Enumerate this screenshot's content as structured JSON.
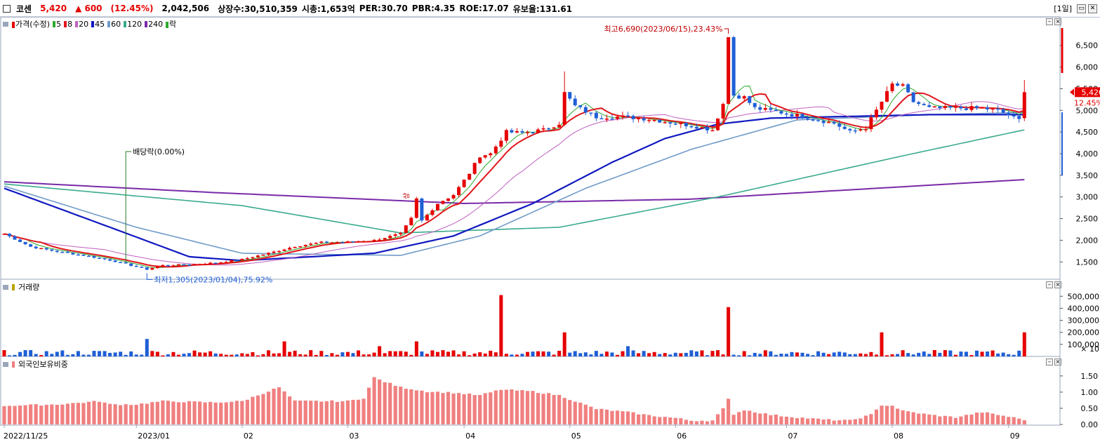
{
  "header": {
    "name": "코센",
    "price": "5,420",
    "change": "▲ 600",
    "change_pct": "(12.45%)",
    "volume": "2,042,506",
    "listed": "상장수:30,510,359",
    "mcap": "시총:1,653억",
    "per": "PER:30.70",
    "pbr": "PBR:4.35",
    "roe": "ROE:17.07",
    "reserve": "유보율:131.61",
    "period": "[1일]"
  },
  "colors": {
    "up": "#e60000",
    "down": "#1f5fd6",
    "ma5": "#2eaa2e",
    "ma8": "#e0161b",
    "ma20": "#c060c0",
    "ma45": "#1018c0",
    "ma60": "#6f9bc8",
    "ma120": "#3aaa8e",
    "ma240": "#7a2aa8",
    "foreign": "#f08080"
  },
  "legend_price": [
    {
      "label": "가격(수정)",
      "color": "#e60000"
    },
    {
      "label": "5",
      "color": "#2eaa2e"
    },
    {
      "label": "8",
      "color": "#e0161b"
    },
    {
      "label": "20",
      "color": "#c060c0"
    },
    {
      "label": "45",
      "color": "#1018c0"
    },
    {
      "label": "60",
      "color": "#6f9bc8"
    },
    {
      "label": "120",
      "color": "#3aaa8e"
    },
    {
      "label": "240",
      "color": "#7a2aa8"
    },
    {
      "label": "락",
      "color": "#2eaa2e"
    }
  ],
  "legend_volume": {
    "label": "거래량",
    "color": "#b8a400"
  },
  "legend_foreign": {
    "label": "외국인보유비중",
    "color": "#f08080"
  },
  "chart_data": [
    {
      "type": "candlestick",
      "panel": "price",
      "title": "",
      "y_ticks": [
        1500,
        2000,
        2500,
        3000,
        3500,
        4000,
        4500,
        5000,
        5500,
        6000,
        6500
      ],
      "y_tick_labels": [
        "1,500",
        "2,000",
        "2,500",
        "3,000",
        "3,500",
        "4,000",
        "4,500",
        "5,000",
        "5,500",
        "6,000",
        "6,500"
      ],
      "ylim": [
        1100,
        6900
      ],
      "x_tick_labels": [
        "2022/11/25",
        "2023/01",
        "02",
        "03",
        "04",
        "05",
        "06",
        "07",
        "08",
        "09"
      ],
      "x_tick_index": [
        0,
        25,
        45,
        65,
        87,
        107,
        127,
        148,
        168,
        190
      ],
      "series_keypoints": [
        [
          0,
          2150
        ],
        [
          5,
          1850
        ],
        [
          10,
          1740
        ],
        [
          15,
          1650
        ],
        [
          20,
          1540
        ],
        [
          25,
          1390
        ],
        [
          27,
          1330
        ],
        [
          30,
          1420
        ],
        [
          35,
          1440
        ],
        [
          40,
          1480
        ],
        [
          45,
          1560
        ],
        [
          50,
          1700
        ],
        [
          55,
          1860
        ],
        [
          60,
          1950
        ],
        [
          65,
          1960
        ],
        [
          70,
          2000
        ],
        [
          75,
          2150
        ],
        [
          77,
          2500
        ],
        [
          78,
          2950
        ],
        [
          79,
          2450
        ],
        [
          82,
          2850
        ],
        [
          85,
          3050
        ],
        [
          88,
          3550
        ],
        [
          90,
          3950
        ],
        [
          92,
          4000
        ],
        [
          95,
          4500
        ],
        [
          98,
          4480
        ],
        [
          102,
          4550
        ],
        [
          105,
          4700
        ],
        [
          106,
          5400
        ],
        [
          108,
          5100
        ],
        [
          112,
          4850
        ],
        [
          117,
          4850
        ],
        [
          122,
          4800
        ],
        [
          127,
          4700
        ],
        [
          130,
          4650
        ],
        [
          134,
          4550
        ],
        [
          136,
          5150
        ],
        [
          137,
          6690
        ],
        [
          138,
          5350
        ],
        [
          140,
          5300
        ],
        [
          142,
          5050
        ],
        [
          147,
          4950
        ],
        [
          152,
          4830
        ],
        [
          157,
          4700
        ],
        [
          160,
          4500
        ],
        [
          163,
          4600
        ],
        [
          166,
          5200
        ],
        [
          168,
          5600
        ],
        [
          170,
          5550
        ],
        [
          172,
          5200
        ],
        [
          175,
          5050
        ],
        [
          180,
          5050
        ],
        [
          185,
          5050
        ],
        [
          188,
          5000
        ],
        [
          192,
          4780
        ],
        [
          193,
          5420
        ]
      ],
      "current_price": 5420,
      "current_change_pct": "12.45%",
      "annotations": {
        "high": "최고6,690(2023/06/15),23.43%",
        "low": "최저1,305(2023/01/04),75.92%",
        "dividend": "배당락(0.00%)",
        "up_mark": "상"
      },
      "moving_averages": {
        "ma240": [
          [
            0,
            3350
          ],
          [
            40,
            3100
          ],
          [
            87,
            2850
          ],
          [
            130,
            2950
          ],
          [
            193,
            3400
          ]
        ],
        "ma120": [
          [
            0,
            3300
          ],
          [
            45,
            2800
          ],
          [
            75,
            2170
          ],
          [
            105,
            2300
          ],
          [
            135,
            3000
          ],
          [
            170,
            3950
          ],
          [
            193,
            4550
          ]
        ],
        "ma60": [
          [
            0,
            3250
          ],
          [
            25,
            2300
          ],
          [
            45,
            1700
          ],
          [
            75,
            1650
          ],
          [
            90,
            2100
          ],
          [
            110,
            3200
          ],
          [
            130,
            4100
          ],
          [
            150,
            4780
          ],
          [
            175,
            4900
          ],
          [
            193,
            4950
          ]
        ],
        "ma45": [
          [
            0,
            3200
          ],
          [
            20,
            2300
          ],
          [
            35,
            1620
          ],
          [
            45,
            1530
          ],
          [
            70,
            1700
          ],
          [
            85,
            2100
          ],
          [
            100,
            2850
          ],
          [
            115,
            3800
          ],
          [
            125,
            4350
          ],
          [
            135,
            4680
          ],
          [
            145,
            4820
          ],
          [
            160,
            4860
          ],
          [
            175,
            4900
          ],
          [
            193,
            4900
          ]
        ]
      }
    },
    {
      "type": "bar",
      "panel": "volume",
      "title": "",
      "y_tick_labels": [
        "100,000",
        "200,000",
        "300,000",
        "400,000",
        "500,000"
      ],
      "y_ticks": [
        100000,
        200000,
        300000,
        400000,
        500000
      ],
      "unit": "× 10",
      "ylim": [
        0,
        560000
      ],
      "spikes": [
        [
          27,
          145000
        ],
        [
          53,
          125000
        ],
        [
          71,
          85000
        ],
        [
          78,
          125000
        ],
        [
          94,
          510000
        ],
        [
          106,
          200000
        ],
        [
          118,
          85000
        ],
        [
          137,
          410000
        ],
        [
          166,
          200000
        ],
        [
          193,
          200000
        ]
      ],
      "base_level": 28000
    },
    {
      "type": "bar",
      "panel": "foreign",
      "title": "",
      "y_tick_labels": [
        "0.00",
        "0.50",
        "1.00",
        "1.50"
      ],
      "y_ticks": [
        0,
        0.5,
        1.0,
        1.5
      ],
      "ylim": [
        0,
        1.8
      ],
      "keypoints": [
        [
          0,
          0.58
        ],
        [
          10,
          0.62
        ],
        [
          15,
          0.68
        ],
        [
          18,
          0.72
        ],
        [
          20,
          0.62
        ],
        [
          25,
          0.62
        ],
        [
          30,
          0.72
        ],
        [
          40,
          0.68
        ],
        [
          45,
          0.72
        ],
        [
          52,
          1.15
        ],
        [
          55,
          0.72
        ],
        [
          65,
          0.72
        ],
        [
          68,
          0.82
        ],
        [
          70,
          1.45
        ],
        [
          72,
          1.32
        ],
        [
          75,
          1.15
        ],
        [
          80,
          1.02
        ],
        [
          85,
          0.98
        ],
        [
          90,
          0.9
        ],
        [
          94,
          1.08
        ],
        [
          100,
          1.02
        ],
        [
          105,
          0.9
        ],
        [
          108,
          0.72
        ],
        [
          112,
          0.48
        ],
        [
          118,
          0.38
        ],
        [
          122,
          0.28
        ],
        [
          127,
          0.2
        ],
        [
          130,
          0.12
        ],
        [
          134,
          0.12
        ],
        [
          136,
          0.48
        ],
        [
          137,
          0.78
        ],
        [
          138,
          0.32
        ],
        [
          140,
          0.45
        ],
        [
          145,
          0.3
        ],
        [
          150,
          0.22
        ],
        [
          155,
          0.15
        ],
        [
          160,
          0.12
        ],
        [
          164,
          0.3
        ],
        [
          166,
          0.6
        ],
        [
          168,
          0.58
        ],
        [
          170,
          0.42
        ],
        [
          175,
          0.3
        ],
        [
          180,
          0.22
        ],
        [
          185,
          0.38
        ],
        [
          190,
          0.24
        ],
        [
          193,
          0.15
        ]
      ]
    }
  ]
}
